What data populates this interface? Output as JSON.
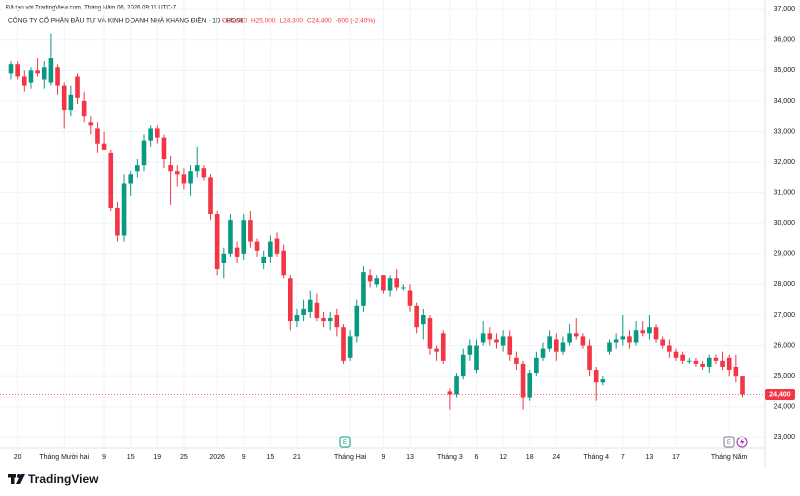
{
  "credit": "Đã tạo với TradingView.com, Tháng Năm 06, 2026 09:11 UTC-7",
  "logo": "TradingView",
  "chart_data": {
    "type": "candlestick",
    "title": "CÔNG TY CỔ PHẦN ĐẦU TƯ VÀ KINH DOANH NHÀ KHANG ĐIỀN · 1D · HOSE",
    "ohlc_header": [
      "O25,000",
      "H25,000",
      "L24,300",
      "C24,400",
      "-600 (-2.40%)"
    ],
    "up_color": "#089981",
    "down_color": "#f23645",
    "grid": true,
    "categories": [
      null,
      "20",
      null,
      null,
      null,
      null,
      null,
      null,
      "Tháng Mười hai",
      null,
      null,
      null,
      null,
      null,
      "9",
      null,
      null,
      null,
      "15",
      null,
      null,
      null,
      "19",
      null,
      null,
      null,
      "25",
      null,
      null,
      null,
      null,
      "2026",
      null,
      null,
      null,
      "9",
      null,
      null,
      null,
      "15",
      null,
      null,
      null,
      "21",
      null,
      null,
      null,
      null,
      null,
      null,
      null,
      "Tháng Hai",
      null,
      null,
      null,
      null,
      "9",
      null,
      null,
      null,
      "13",
      null,
      null,
      null,
      null,
      null,
      "Tháng 3",
      null,
      null,
      null,
      "6",
      null,
      null,
      null,
      "12",
      null,
      null,
      null,
      "18",
      null,
      null,
      null,
      "24",
      null,
      null,
      null,
      null,
      null,
      "Tháng 4",
      null,
      null,
      null,
      "7",
      null,
      null,
      null,
      "13",
      null,
      null,
      null,
      "17",
      null,
      null,
      null,
      null,
      null,
      null,
      null,
      "Tháng Năm",
      null,
      null
    ],
    "open": [
      34900,
      35200,
      34800,
      34600,
      35000,
      34700,
      34600,
      35100,
      34500,
      33700,
      34800,
      34000,
      33300,
      33100,
      32600,
      32300,
      30500,
      29600,
      31300,
      31700,
      31900,
      32700,
      33100,
      32800,
      31900,
      31700,
      31600,
      31300,
      31700,
      31800,
      31500,
      30300,
      28700,
      29000,
      29200,
      29000,
      30100,
      29400,
      28700,
      28900,
      29500,
      29100,
      28200,
      26800,
      27000,
      27100,
      27400,
      26900,
      26800,
      27000,
      26600,
      25600,
      26300,
      27300,
      28300,
      28000,
      28300,
      27800,
      28200,
      27900,
      27800,
      27300,
      26700,
      26900,
      25900,
      26400,
      24500,
      24400,
      25000,
      25700,
      25200,
      26100,
      26400,
      26200,
      26000,
      26300,
      25600,
      25400,
      24300,
      25100,
      25600,
      25900,
      26200,
      25800,
      26100,
      26400,
      26300,
      26000,
      25200,
      24800,
      25800,
      26100,
      26200,
      26300,
      26100,
      26500,
      26400,
      26600,
      26200,
      26000,
      25800,
      25700,
      25500,
      25500,
      25400,
      25300,
      25600,
      25500,
      25600,
      25300,
      25000
    ],
    "high": [
      35300,
      35300,
      35000,
      35100,
      35400,
      35300,
      36200,
      35200,
      34600,
      34500,
      34900,
      34300,
      33500,
      33300,
      33000,
      32400,
      30700,
      31600,
      31700,
      32100,
      32900,
      33200,
      33200,
      32900,
      32200,
      31900,
      31800,
      31900,
      32500,
      31900,
      31600,
      30400,
      29200,
      30300,
      29400,
      30300,
      30400,
      29500,
      29100,
      29600,
      29700,
      29300,
      28300,
      27200,
      27500,
      27800,
      27700,
      27100,
      27100,
      27200,
      26700,
      26500,
      27500,
      28600,
      28500,
      28300,
      28300,
      28300,
      28500,
      28000,
      28000,
      27400,
      27200,
      27000,
      26000,
      26500,
      24600,
      25100,
      25900,
      26200,
      26200,
      26800,
      26600,
      26400,
      26500,
      26500,
      25800,
      25500,
      25200,
      25800,
      26100,
      26500,
      26400,
      26300,
      26700,
      26900,
      26400,
      26200,
      25300,
      25000,
      26200,
      26400,
      27000,
      26500,
      26800,
      26800,
      27000,
      26700,
      26300,
      26200,
      25900,
      25800,
      25600,
      25600,
      25500,
      25700,
      25700,
      25800,
      25700,
      25700,
      25000
    ],
    "low": [
      34700,
      34700,
      34300,
      34400,
      34800,
      34400,
      34500,
      34200,
      33100,
      33500,
      33900,
      33300,
      32900,
      32300,
      32400,
      30400,
      29400,
      29400,
      30900,
      31500,
      31700,
      32500,
      32600,
      31800,
      30600,
      31200,
      31100,
      30900,
      31500,
      31400,
      30100,
      28300,
      28200,
      28900,
      28700,
      28800,
      29200,
      28900,
      28500,
      28700,
      28900,
      28200,
      26500,
      26600,
      26800,
      26900,
      26800,
      26600,
      26500,
      26300,
      25400,
      25500,
      26100,
      27100,
      27900,
      27900,
      27700,
      27600,
      27800,
      27800,
      27100,
      26400,
      26200,
      25700,
      25500,
      25400,
      23900,
      24300,
      24900,
      25500,
      25100,
      26000,
      26000,
      25900,
      25800,
      25500,
      25200,
      23900,
      24200,
      25000,
      25500,
      25800,
      25500,
      25700,
      26000,
      26200,
      25900,
      25000,
      24200,
      24700,
      25700,
      25900,
      26000,
      25900,
      26000,
      26300,
      26200,
      26100,
      25900,
      25600,
      25500,
      25400,
      25400,
      25300,
      25200,
      25100,
      25400,
      25200,
      25000,
      24800,
      24300
    ],
    "close": [
      35200,
      34800,
      34500,
      35000,
      34900,
      35100,
      35400,
      34500,
      33700,
      34200,
      34100,
      33500,
      33200,
      32600,
      32400,
      30500,
      29600,
      31300,
      31600,
      31900,
      32700,
      33100,
      32800,
      32100,
      31700,
      31600,
      31300,
      31700,
      31900,
      31500,
      30300,
      28500,
      29000,
      30100,
      28900,
      30100,
      29400,
      29100,
      28900,
      29400,
      29000,
      28300,
      26800,
      27000,
      27200,
      27500,
      26900,
      26800,
      26900,
      26600,
      25500,
      26300,
      27300,
      28400,
      28100,
      28200,
      27800,
      28200,
      27900,
      27900,
      27300,
      26600,
      27000,
      25900,
      25800,
      25500,
      24400,
      25000,
      25700,
      26000,
      26000,
      26400,
      26200,
      26100,
      26300,
      25700,
      25400,
      24300,
      25100,
      25600,
      25900,
      26300,
      25800,
      26100,
      26400,
      26300,
      26000,
      25200,
      24800,
      24900,
      26100,
      26200,
      26300,
      26100,
      26500,
      26400,
      26600,
      26200,
      26000,
      25800,
      25600,
      25500,
      25500,
      25400,
      25300,
      25600,
      25500,
      25300,
      25200,
      25000,
      24400
    ],
    "last_price": {
      "value": 24400,
      "label": "24,400"
    },
    "event_markers": [
      "E",
      "E"
    ],
    "ylim": [
      22650,
      37300
    ],
    "yticks": [
      {
        "value": 23000,
        "label": "23,000"
      },
      {
        "value": 24000,
        "label": "24,000"
      },
      {
        "value": 25000,
        "label": "25,000"
      },
      {
        "value": 26000,
        "label": "26,000"
      },
      {
        "value": 27000,
        "label": "27,000"
      },
      {
        "value": 28000,
        "label": "28,000"
      },
      {
        "value": 29000,
        "label": "29,000"
      },
      {
        "value": 30000,
        "label": "30,000"
      },
      {
        "value": 31000,
        "label": "31,000"
      },
      {
        "value": 32000,
        "label": "32,000"
      },
      {
        "value": 33000,
        "label": "33,000"
      },
      {
        "value": 34000,
        "label": "34,000"
      },
      {
        "value": 35000,
        "label": "35,000"
      },
      {
        "value": 36000,
        "label": "36,000"
      },
      {
        "value": 37000,
        "label": "37,000"
      }
    ]
  }
}
